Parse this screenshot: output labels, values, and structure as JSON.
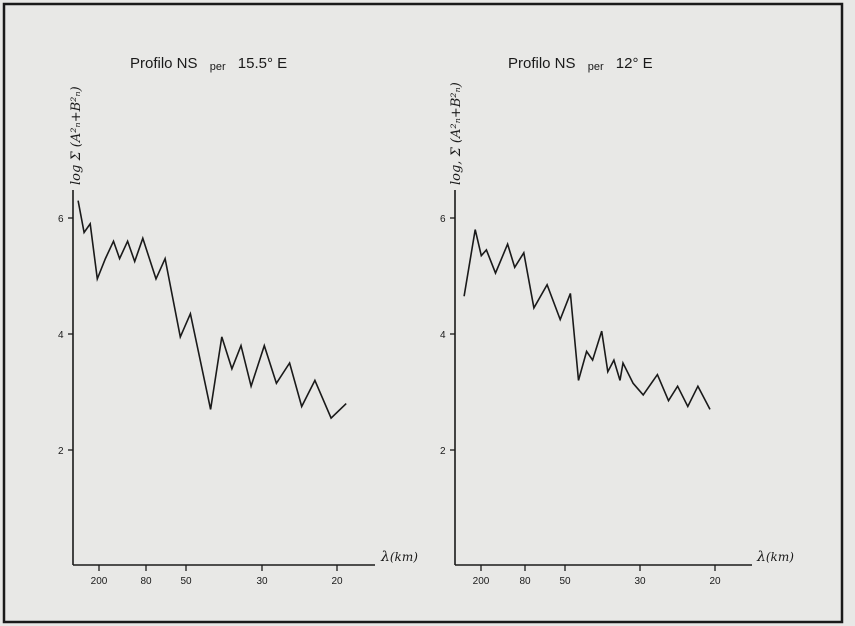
{
  "chart_data": [
    {
      "type": "line",
      "title": "Profilo NS per 15.5° E",
      "title_parts": {
        "main": "Profilo NS",
        "per": "per",
        "deg": "15.5° E"
      },
      "ylabel": "log Σ (A²ₙ+B²ₙ)",
      "xlabel": "λ(km)",
      "xlabel_parts": {
        "lambda": "λ",
        "unit": "(km)"
      },
      "x_ticks": [
        "200",
        "80",
        "50",
        "30",
        "20"
      ],
      "y_ticks": [
        "6",
        "4",
        "2"
      ],
      "ylim": [
        0.5,
        6.8
      ],
      "series": [
        {
          "points": [
            [
              0.25,
              6.3
            ],
            [
              0.55,
              5.75
            ],
            [
              0.85,
              5.9
            ],
            [
              1.2,
              4.95
            ],
            [
              1.6,
              5.3
            ],
            [
              2.0,
              5.6
            ],
            [
              2.3,
              5.3
            ],
            [
              2.7,
              5.6
            ],
            [
              3.05,
              5.25
            ],
            [
              3.45,
              5.65
            ],
            [
              4.1,
              4.95
            ],
            [
              4.55,
              5.3
            ],
            [
              5.3,
              3.95
            ],
            [
              5.8,
              4.35
            ],
            [
              6.8,
              2.7
            ],
            [
              7.35,
              3.95
            ],
            [
              7.85,
              3.4
            ],
            [
              8.3,
              3.8
            ],
            [
              8.8,
              3.1
            ],
            [
              9.45,
              3.8
            ],
            [
              10.05,
              3.15
            ],
            [
              10.7,
              3.5
            ],
            [
              11.3,
              2.75
            ],
            [
              11.95,
              3.2
            ],
            [
              12.75,
              2.55
            ],
            [
              13.5,
              2.8
            ]
          ]
        }
      ]
    },
    {
      "type": "line",
      "title": "Profilo NS per 12° E",
      "title_parts": {
        "main": "Profilo NS",
        "per": "per",
        "deg": "12° E"
      },
      "ylabel": "log, Σ (A²ₙ+B²ₙ)",
      "xlabel": "λ(km)",
      "xlabel_parts": {
        "lambda": "λ",
        "unit": "(km)"
      },
      "x_ticks": [
        "200",
        "80",
        "50",
        "30",
        "20"
      ],
      "y_ticks": [
        "6",
        "4",
        "2"
      ],
      "ylim": [
        0.5,
        6.8
      ],
      "series": [
        {
          "points": [
            [
              0.45,
              4.65
            ],
            [
              1.0,
              5.8
            ],
            [
              1.3,
              5.35
            ],
            [
              1.55,
              5.45
            ],
            [
              2.0,
              5.05
            ],
            [
              2.6,
              5.55
            ],
            [
              2.95,
              5.15
            ],
            [
              3.4,
              5.4
            ],
            [
              3.9,
              4.45
            ],
            [
              4.55,
              4.85
            ],
            [
              5.2,
              4.25
            ],
            [
              5.7,
              4.7
            ],
            [
              6.1,
              3.2
            ],
            [
              6.5,
              3.7
            ],
            [
              6.8,
              3.55
            ],
            [
              7.25,
              4.05
            ],
            [
              7.55,
              3.35
            ],
            [
              7.85,
              3.55
            ],
            [
              8.15,
              3.2
            ],
            [
              8.3,
              3.5
            ],
            [
              8.8,
              3.15
            ],
            [
              9.3,
              2.95
            ],
            [
              10.0,
              3.3
            ],
            [
              10.55,
              2.85
            ],
            [
              11.0,
              3.1
            ],
            [
              11.5,
              2.75
            ],
            [
              12.0,
              3.1
            ],
            [
              12.6,
              2.7
            ]
          ]
        }
      ]
    }
  ]
}
